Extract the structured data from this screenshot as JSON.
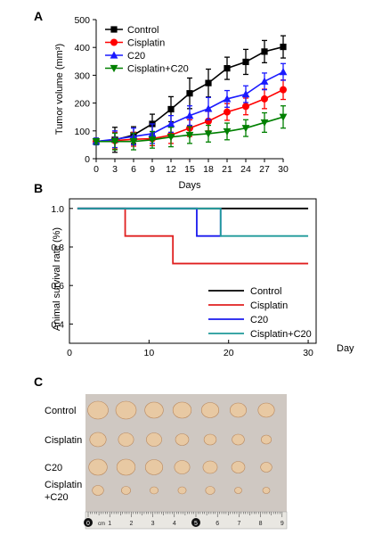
{
  "panels": {
    "a": "A",
    "b": "B",
    "c": "C"
  },
  "chart_data": [
    {
      "type": "line",
      "panel": "A",
      "xlabel": "Days",
      "ylabel": "Tumor volume (mm³)",
      "x": [
        0,
        3,
        6,
        9,
        12,
        15,
        18,
        21,
        24,
        27,
        30
      ],
      "xticks": [
        "0",
        "3",
        "6",
        "9",
        "12",
        "15",
        "18",
        "21",
        "24",
        "27",
        "30"
      ],
      "yticks": [
        "0",
        "100",
        "200",
        "300",
        "400",
        "500"
      ],
      "xlim": [
        0,
        30
      ],
      "ylim": [
        0,
        500
      ],
      "legend": "top-left",
      "series": [
        {
          "name": "Control",
          "color": "#000000",
          "marker": "square",
          "values": [
            62,
            68,
            85,
            125,
            178,
            235,
            272,
            325,
            348,
            385,
            402
          ],
          "errors": [
            12,
            45,
            30,
            35,
            45,
            55,
            50,
            40,
            45,
            40,
            40
          ]
        },
        {
          "name": "Cisplatin",
          "color": "#ff0000",
          "marker": "circle",
          "values": [
            62,
            65,
            70,
            72,
            85,
            110,
            135,
            168,
            188,
            215,
            248
          ],
          "errors": [
            10,
            30,
            25,
            25,
            30,
            30,
            35,
            30,
            30,
            35,
            35
          ]
        },
        {
          "name": "C20",
          "color": "#1a1aff",
          "marker": "triangle",
          "values": [
            62,
            70,
            80,
            90,
            125,
            155,
            180,
            215,
            232,
            278,
            312
          ],
          "errors": [
            12,
            30,
            30,
            35,
            30,
            35,
            40,
            30,
            30,
            30,
            30
          ]
        },
        {
          "name": "Cisplatin+C20",
          "color": "#008000",
          "marker": "triangle-down",
          "values": [
            62,
            62,
            62,
            68,
            78,
            85,
            90,
            98,
            110,
            130,
            150
          ],
          "errors": [
            10,
            30,
            30,
            30,
            35,
            30,
            30,
            30,
            30,
            35,
            40
          ]
        }
      ]
    },
    {
      "type": "line",
      "subtype": "step",
      "panel": "B",
      "xlabel": "Day",
      "ylabel": "Animal survival rate (%)",
      "xticks": [
        "0",
        "10",
        "20",
        "30"
      ],
      "yticks": [
        "1.0",
        "0.8",
        "0.6",
        "0.4"
      ],
      "xlim": [
        0,
        31
      ],
      "ylim": [
        0.3,
        1.05
      ],
      "legend": "bottom-right",
      "series": [
        {
          "name": "Control",
          "color": "#000000",
          "x": [
            1,
            30
          ],
          "values": [
            1.0,
            1.0
          ]
        },
        {
          "name": "Cisplatin",
          "color": "#e02020",
          "x": [
            1,
            7,
            7,
            13,
            13,
            30
          ],
          "values": [
            1.0,
            1.0,
            0.857,
            0.857,
            0.714,
            0.714
          ]
        },
        {
          "name": "C20",
          "color": "#1a1aee",
          "x": [
            1,
            16,
            16,
            19,
            19
          ],
          "values": [
            1.0,
            1.0,
            0.857,
            0.857,
            1.0
          ]
        },
        {
          "name": "Cisplatin+C20",
          "color": "#1f9a9a",
          "x": [
            1,
            19,
            19,
            30
          ],
          "values": [
            1.0,
            1.0,
            0.857,
            0.857
          ]
        }
      ]
    }
  ],
  "photo": {
    "rows": [
      {
        "label": "Control",
        "count": 7
      },
      {
        "label": "Cisplatin",
        "count": 7
      },
      {
        "label": "C20",
        "count": 7
      },
      {
        "label": "Cisplatin\n+C20",
        "label_lines": [
          "Cisplatin",
          "+C20"
        ],
        "count": 7
      }
    ],
    "ruler_unit": "cm",
    "ruler_numbers": [
      "0",
      "1",
      "2",
      "3",
      "4",
      "5",
      "6",
      "7",
      "8",
      "9"
    ]
  }
}
